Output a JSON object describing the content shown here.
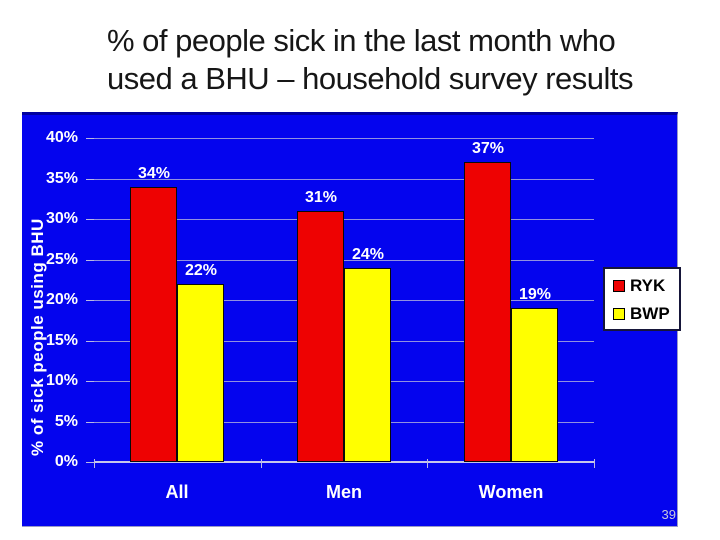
{
  "header": {
    "title_line1": "% of people sick in the last month who",
    "title_line2": "used a BHU – household survey results"
  },
  "footer": {
    "page_number": "39"
  },
  "legend": {
    "items": [
      {
        "label": "RYK",
        "color": "#ee0202"
      },
      {
        "label": "BWP",
        "color": "#ffff00"
      }
    ]
  },
  "theme": {
    "panel_background": "#0404ee",
    "gridline_color": "#9191e0",
    "axis_line_color": "#c6c6ea",
    "label_color": "#ffffff",
    "ryk_color": "#ee0202",
    "bwp_color": "#ffff00",
    "legend_background": "#ffffff",
    "title_color": "#161616"
  },
  "chart_data": {
    "type": "bar",
    "title": "% of people sick in the last month who used a BHU – household survey results",
    "categories": [
      "All",
      "Men",
      "Women"
    ],
    "series": [
      {
        "name": "RYK",
        "color": "#ee0202",
        "values": [
          34,
          31,
          37
        ],
        "data_labels": [
          "34%",
          "31%",
          "37%"
        ]
      },
      {
        "name": "BWP",
        "color": "#ffff00",
        "values": [
          22,
          24,
          19
        ],
        "data_labels": [
          "22%",
          "24%",
          "19%"
        ]
      }
    ],
    "xlabel": "",
    "ylabel": "% of sick people using BHU",
    "ylim": [
      0,
      42.5
    ],
    "yticks": [
      0,
      5,
      10,
      15,
      20,
      25,
      30,
      35,
      40
    ],
    "ytick_labels": [
      "0%",
      "5%",
      "10%",
      "15%",
      "20%",
      "25%",
      "30%",
      "35%",
      "40%"
    ],
    "grid": true,
    "legend_position": "right"
  }
}
